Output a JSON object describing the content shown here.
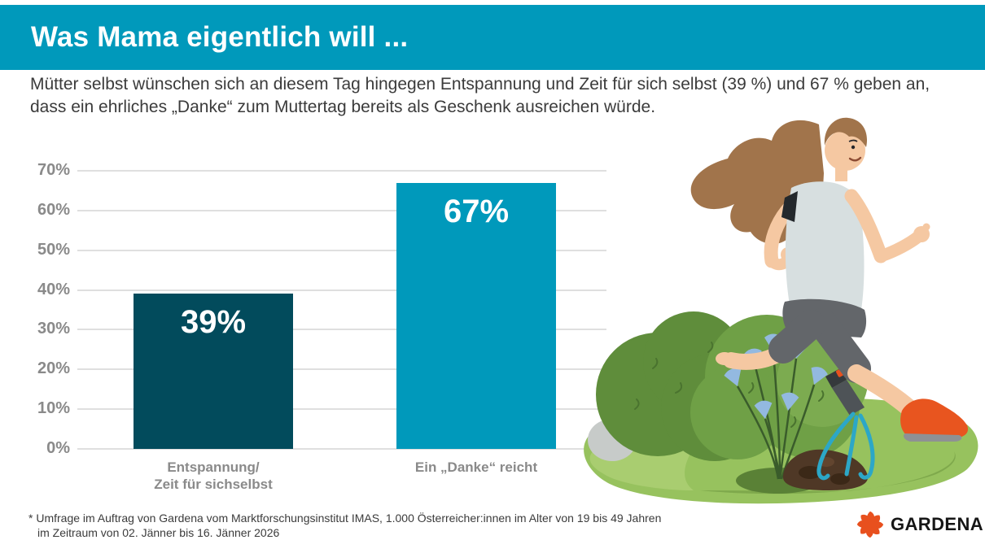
{
  "header": {
    "title": "Was Mama eigentlich will ..."
  },
  "intro": {
    "text": "Mütter selbst wünschen sich an diesem Tag hingegen Entspannung und Zeit für sich selbst (39 %) und 67 % geben an,\ndass ein ehrliches „Danke“ zum Muttertag bereits als Geschenk ausreichen würde."
  },
  "chart_data": {
    "type": "bar",
    "categories": [
      "Entspannung/\nZeit für sichselbst",
      "Ein „Danke“ reicht"
    ],
    "values": [
      39,
      67
    ],
    "value_labels": [
      "39%",
      "67%"
    ],
    "bar_colors": [
      "#024B5C",
      "#0099BB"
    ],
    "title": "Was Mama eigentlich will ...",
    "xlabel": "",
    "ylabel": "",
    "ylim": [
      0,
      70
    ],
    "yticks": [
      "0%",
      "10%",
      "20%",
      "30%",
      "40%",
      "50%",
      "60%",
      "70%"
    ],
    "grid": true,
    "legend": false
  },
  "footnote": {
    "line1": "* Umfrage im Auftrag von Gardena vom Marktforschungsinstitut IMAS, 1.000 Österreicher:innen im Alter von 19 bis 49 Jahren",
    "line2": "im Zeitraum von 02. Jänner bis 16. Jänner 2026"
  },
  "logo": {
    "brand": "GARDENA",
    "icon": "gardena-flower-icon",
    "icon_color": "#E8501E"
  },
  "illustration": {
    "name": "woman-jogging-garden-illustration"
  },
  "colors": {
    "accent": "#0099BB",
    "bar_dark": "#024B5C",
    "grid_line": "#DFDFDF",
    "tick_label": "#8A8A8A",
    "text": "#3B3B3B",
    "logo_orange": "#E8501E"
  }
}
